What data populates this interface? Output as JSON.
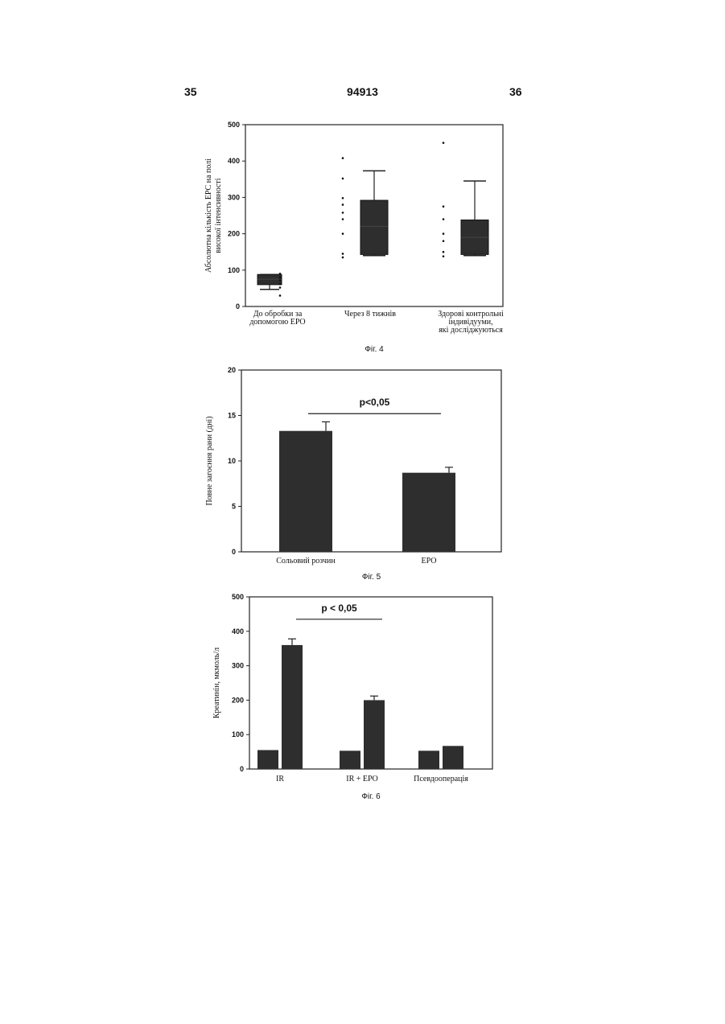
{
  "header": {
    "left": "35",
    "center": "94913",
    "right": "36"
  },
  "colors": {
    "bar": "#2e2e2e",
    "axis": "#222222"
  },
  "chart_data": [
    {
      "id": "fig4",
      "type": "box",
      "caption": "Фіг. 4",
      "ylabel_lines": [
        "Абсолютна кількість EPC на полі",
        "високої інтенсивності"
      ],
      "ylim": [
        0,
        500
      ],
      "yticks": [
        0,
        100,
        200,
        300,
        400,
        500
      ],
      "grid": false,
      "categories": [
        {
          "lines": [
            "До обробки за",
            "допомогою EPO"
          ]
        },
        {
          "lines": [
            "Через 8 тижнів"
          ]
        },
        {
          "lines": [
            "Здорові контрольні",
            "індивідууми,",
            "які досліджуються"
          ]
        }
      ],
      "boxes": [
        {
          "min": 47,
          "q1": 60,
          "median": 75,
          "q3": 88,
          "max": 88,
          "points": [
            30,
            52,
            62,
            72,
            80,
            90
          ]
        },
        {
          "min": 140,
          "q1": 143,
          "median": 220,
          "q3": 292,
          "max": 373,
          "points": [
            135,
            145,
            200,
            240,
            258,
            280,
            298,
            352,
            408
          ]
        },
        {
          "min": 140,
          "q1": 143,
          "median": 190,
          "q3": 238,
          "max": 345,
          "points": [
            138,
            150,
            180,
            200,
            240,
            275,
            450
          ]
        }
      ]
    },
    {
      "id": "fig5",
      "type": "bar",
      "caption": "Фіг. 5",
      "ylabel": "Повне загоєння рани (дні)",
      "ylim": [
        0,
        20
      ],
      "yticks": [
        0,
        5,
        10,
        15,
        20
      ],
      "grid": false,
      "categories": [
        "Сольовий розчин",
        "EPO"
      ],
      "values": [
        13.3,
        8.7
      ],
      "errors": [
        1.0,
        0.6
      ],
      "annotation": {
        "text": "p<0,05",
        "from": 0,
        "to": 1,
        "y": 15.2
      }
    },
    {
      "id": "fig6",
      "type": "bar",
      "caption": "Фіг. 6",
      "ylabel": "Креатинін, мкмоль/л",
      "ylim": [
        0,
        500
      ],
      "yticks": [
        0,
        100,
        200,
        300,
        400,
        500
      ],
      "grid": false,
      "categories": [
        "IR",
        "IR + EPO",
        "Псевдооперація"
      ],
      "series": [
        {
          "values": [
            55,
            53,
            53
          ],
          "errors": [
            0,
            0,
            0
          ]
        },
        {
          "values": [
            360,
            200,
            67
          ],
          "errors": [
            18,
            12,
            0
          ]
        }
      ],
      "annotation": {
        "text": "p < 0,05",
        "from": 0,
        "to": 1,
        "y": 435
      }
    }
  ]
}
